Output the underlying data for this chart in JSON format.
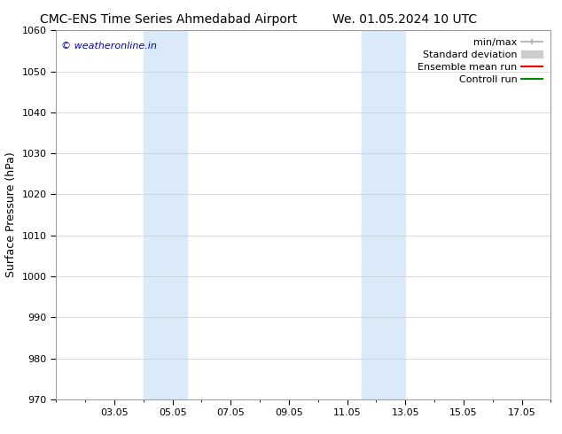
{
  "title_left": "CMC-ENS Time Series Ahmedabad Airport",
  "title_right": "We. 01.05.2024 10 UTC",
  "ylabel": "Surface Pressure (hPa)",
  "ylim": [
    970,
    1060
  ],
  "yticks": [
    970,
    980,
    990,
    1000,
    1010,
    1020,
    1030,
    1040,
    1050,
    1060
  ],
  "xtick_labels": [
    "03.05",
    "05.05",
    "07.05",
    "09.05",
    "11.05",
    "13.05",
    "15.05",
    "17.05"
  ],
  "xtick_positions": [
    3,
    5,
    7,
    9,
    11,
    13,
    15,
    17
  ],
  "xlim": [
    1.0,
    18.0
  ],
  "watermark": "© weatheronline.in",
  "watermark_color": "#0000cc",
  "bg_color": "#ffffff",
  "shaded_bands": [
    {
      "x_start": 4.0,
      "x_end": 5.5
    },
    {
      "x_start": 11.5,
      "x_end": 13.0
    }
  ],
  "shade_color": "#daeaf8",
  "legend_labels": [
    "min/max",
    "Standard deviation",
    "Ensemble mean run",
    "Controll run"
  ],
  "legend_colors": [
    "#aaaaaa",
    "#cccccc",
    "#ff0000",
    "#008800"
  ],
  "grid_color": "#cccccc",
  "title_fontsize": 10,
  "ylabel_fontsize": 9,
  "tick_fontsize": 8,
  "legend_fontsize": 8,
  "watermark_fontsize": 8
}
